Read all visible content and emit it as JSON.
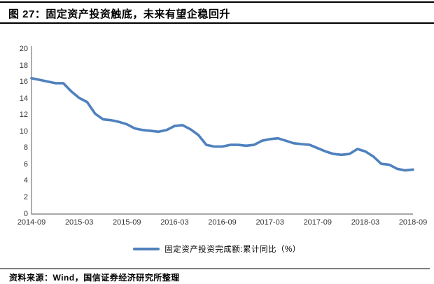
{
  "header": {
    "title": "图 27：固定资产投资触底，未来有望企稳回升"
  },
  "legend": {
    "label": "固定资产投资完成额:累计同比（%）"
  },
  "footer": {
    "source": "资料来源：Wind，国信证券经济研究所整理"
  },
  "colors": {
    "line": "#4F81BD",
    "axis": "#8c8c8c",
    "tick_text": "#333333",
    "top_rules": "#000000",
    "footer_rule": "#7f7f7f"
  },
  "chart_data": {
    "type": "line",
    "title": "",
    "xlabel": "",
    "ylabel": "",
    "ylim": [
      0,
      20
    ],
    "yticks": [
      0,
      2,
      4,
      6,
      8,
      10,
      12,
      14,
      16,
      18,
      20
    ],
    "grid": false,
    "legend_position": "bottom-center",
    "x": [
      "2014-09",
      "2014-10",
      "2014-11",
      "2014-12",
      "2015-01",
      "2015-02",
      "2015-03",
      "2015-04",
      "2015-05",
      "2015-06",
      "2015-07",
      "2015-08",
      "2015-09",
      "2015-10",
      "2015-11",
      "2015-12",
      "2016-01",
      "2016-02",
      "2016-03",
      "2016-04",
      "2016-05",
      "2016-06",
      "2016-07",
      "2016-08",
      "2016-09",
      "2016-10",
      "2016-11",
      "2016-12",
      "2017-01",
      "2017-02",
      "2017-03",
      "2017-04",
      "2017-05",
      "2017-06",
      "2017-07",
      "2017-08",
      "2017-09",
      "2017-10",
      "2017-11",
      "2017-12",
      "2018-01",
      "2018-02",
      "2018-03",
      "2018-04",
      "2018-05",
      "2018-06",
      "2018-07",
      "2018-08",
      "2018-09"
    ],
    "xtick_labels": [
      "2014-09",
      "2015-03",
      "2015-09",
      "2016-03",
      "2016-09",
      "2017-03",
      "2017-09",
      "2018-03",
      "2018-09"
    ],
    "series": [
      {
        "name": "固定资产投资完成额:累计同比（%）",
        "values": [
          16.5,
          16.3,
          16.1,
          15.9,
          15.9,
          14.9,
          14.1,
          13.6,
          12.2,
          11.5,
          11.4,
          11.2,
          10.9,
          10.4,
          10.2,
          10.1,
          10.0,
          10.2,
          10.7,
          10.8,
          10.3,
          9.6,
          8.4,
          8.2,
          8.2,
          8.4,
          8.4,
          8.3,
          8.4,
          8.9,
          9.1,
          9.2,
          8.9,
          8.6,
          8.5,
          8.4,
          8.0,
          7.6,
          7.3,
          7.2,
          7.3,
          7.9,
          7.6,
          7.0,
          6.1,
          6.0,
          5.5,
          5.3,
          5.4
        ]
      }
    ]
  }
}
